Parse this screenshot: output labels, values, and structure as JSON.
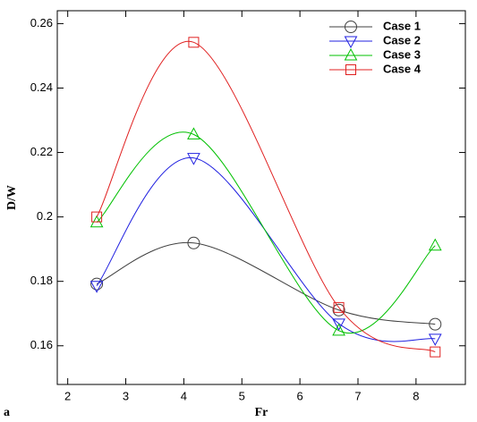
{
  "chart_data": {
    "type": "line",
    "xlabel": "Fr",
    "ylabel": "D/W",
    "annotation": "a",
    "x": [
      2.5,
      4.17,
      6.67,
      8.33
    ],
    "series": [
      {
        "name": "Case 1",
        "color": "#404040",
        "marker": "circle",
        "values": [
          0.1792,
          0.1919,
          0.1711,
          0.1667
        ]
      },
      {
        "name": "Case 2",
        "color": "#2020e0",
        "marker": "triangle-down",
        "values": [
          0.1786,
          0.2183,
          0.1669,
          0.1622
        ]
      },
      {
        "name": "Case 3",
        "color": "#00c000",
        "marker": "triangle-up",
        "values": [
          0.1983,
          0.2256,
          0.1647,
          0.1911
        ]
      },
      {
        "name": "Case 4",
        "color": "#e02020",
        "marker": "square",
        "values": [
          0.2,
          0.2542,
          0.1719,
          0.1581
        ]
      }
    ],
    "xlim": [
      1.82,
      8.85
    ],
    "xticks": [
      2,
      3,
      4,
      5,
      6,
      7,
      8
    ],
    "ylim": [
      0.148,
      0.264
    ],
    "yticks": [
      0.16,
      0.18,
      {
        "value": 0.2,
        "label": "0.2"
      },
      0.22,
      0.24,
      0.26
    ],
    "legend": "top-right"
  }
}
